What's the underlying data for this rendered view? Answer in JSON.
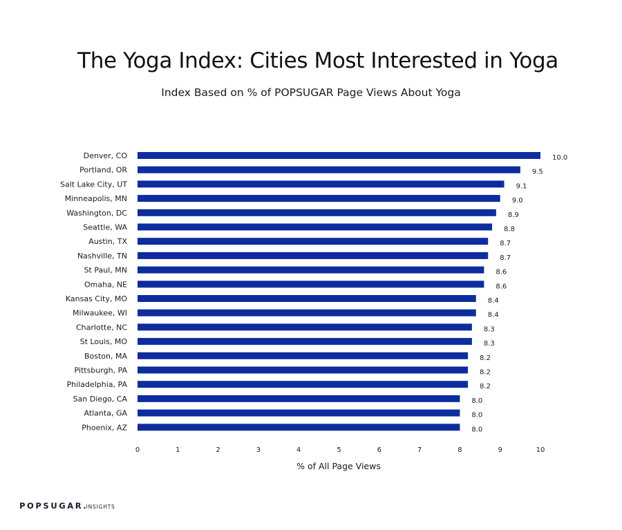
{
  "brand": {
    "name": "POPSUGAR",
    "dot": ".",
    "suffix": "INSIGHTS"
  },
  "chart_data": {
    "type": "bar",
    "orientation": "horizontal",
    "title": "The Yoga Index: Cities Most Interested in Yoga",
    "subtitle": "Index Based on % of POPSUGAR Page Views About Yoga",
    "xlabel": "% of All Page Views",
    "ylabel": "",
    "xlim": [
      0,
      10
    ],
    "xticks": [
      "0",
      "1",
      "2",
      "3",
      "4",
      "5",
      "6",
      "7",
      "8",
      "9",
      "10"
    ],
    "grid": false,
    "bar_color": "#0d2d9e",
    "categories": [
      "Denver, CO",
      "Portland, OR",
      "Salt Lake City, UT",
      "Minneapolis, MN",
      "Washington, DC",
      "Seattle, WA",
      "Austin, TX",
      "Nashville, TN",
      "St Paul, MN",
      "Omaha, NE",
      "Kansas City, MO",
      "Milwaukee, WI",
      "Charlotte, NC",
      "St Louis, MO",
      "Boston, MA",
      "Pittsburgh, PA",
      "Philadelphia, PA",
      "San Diego, CA",
      "Atlanta, GA",
      "Phoenix, AZ"
    ],
    "values": [
      10.0,
      9.5,
      9.1,
      9.0,
      8.9,
      8.8,
      8.7,
      8.7,
      8.6,
      8.6,
      8.4,
      8.4,
      8.3,
      8.3,
      8.2,
      8.2,
      8.2,
      8.0,
      8.0,
      8.0
    ],
    "value_labels": [
      "10.0",
      "9.5",
      "9.1",
      "9.0",
      "8.9",
      "8.8",
      "8.7",
      "8.7",
      "8.6",
      "8.6",
      "8.4",
      "8.4",
      "8.3",
      "8.3",
      "8.2",
      "8.2",
      "8.2",
      "8.0",
      "8.0",
      "8.0"
    ]
  }
}
